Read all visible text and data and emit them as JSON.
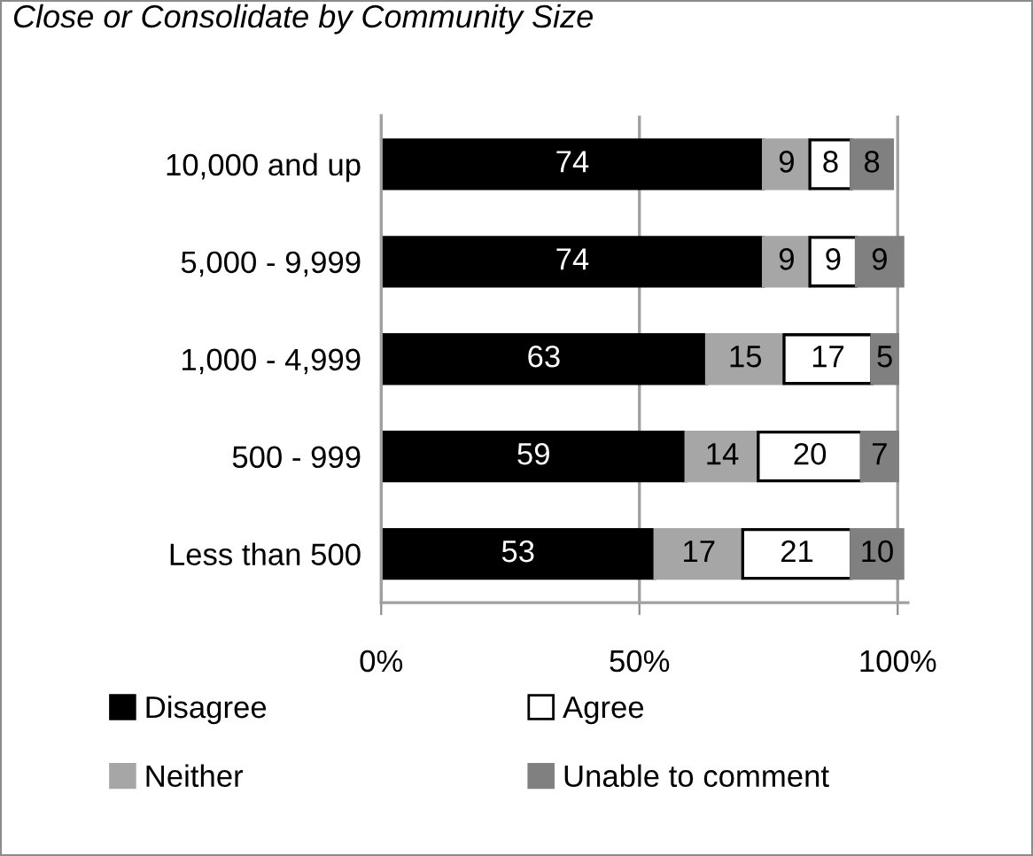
{
  "chart_data": {
    "type": "bar",
    "orientation": "horizontal",
    "stacked": true,
    "title": "Close or Consolidate by Community Size",
    "categories": [
      "10,000 and up",
      "5,000 - 9,999",
      "1,000 - 4,999",
      "500 - 999",
      "Less than 500"
    ],
    "series": [
      {
        "name": "Disagree",
        "color": "#000000",
        "values": [
          74,
          74,
          63,
          59,
          53
        ]
      },
      {
        "name": "Neither",
        "color": "#a6a6a6",
        "values": [
          9,
          9,
          15,
          14,
          17
        ]
      },
      {
        "name": "Agree",
        "color": "#ffffff",
        "values": [
          8,
          9,
          17,
          20,
          21
        ]
      },
      {
        "name": "Unable to comment",
        "color": "#808080",
        "values": [
          8,
          9,
          5,
          7,
          10
        ]
      }
    ],
    "xlim": [
      0,
      102
    ],
    "xticks": [
      {
        "value": 0,
        "label": "0%"
      },
      {
        "value": 50,
        "label": "50%"
      },
      {
        "value": 100,
        "label": "100%"
      }
    ],
    "data_labels": true,
    "grid": "x",
    "legend": "bottom"
  }
}
